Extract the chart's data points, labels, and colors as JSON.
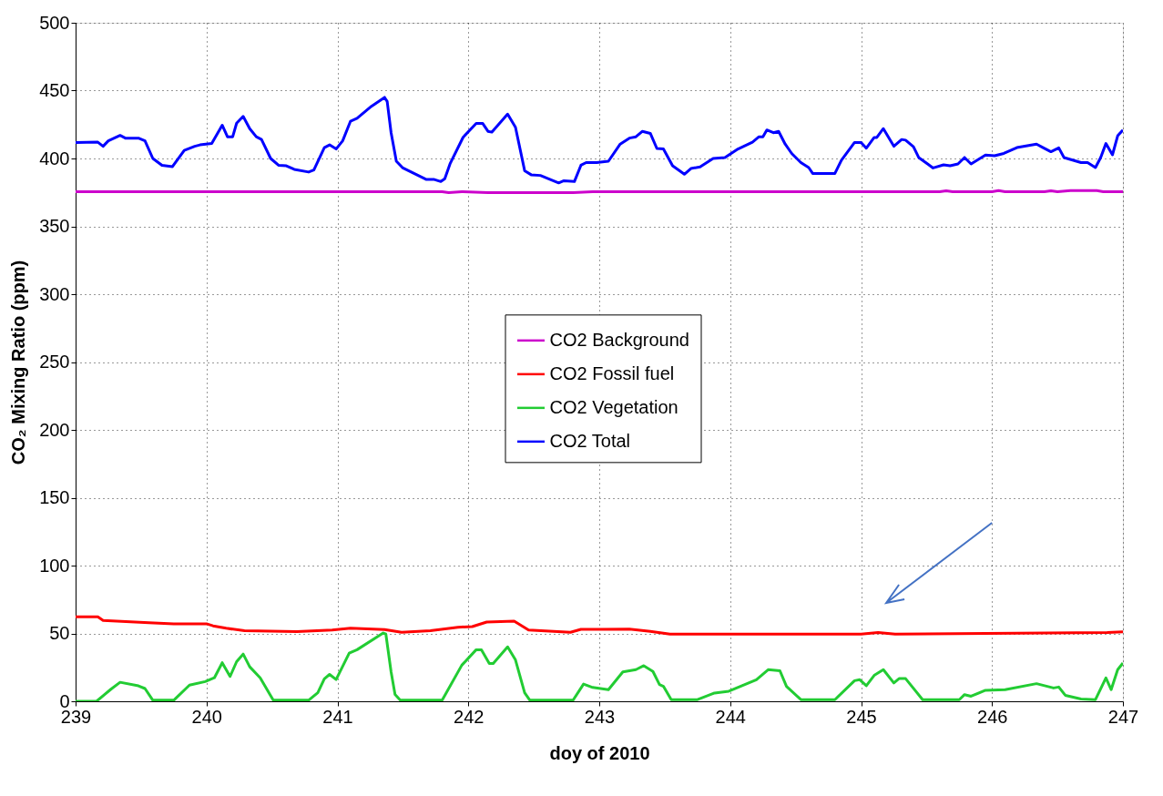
{
  "chart_data": {
    "type": "line",
    "xlabel": "doy of 2010",
    "ylabel": "CO₂ Mixing Ratio (ppm)",
    "xlim": [
      239,
      247
    ],
    "xticks": [
      239,
      240,
      241,
      242,
      243,
      244,
      245,
      246,
      247
    ],
    "ylim": [
      0,
      500
    ],
    "yticks": [
      0,
      50,
      100,
      150,
      200,
      250,
      300,
      350,
      400,
      450,
      500
    ],
    "grid": true,
    "legend": "center",
    "line_style": "solid",
    "marker": "none",
    "series": [
      {
        "name": "CO2 Background",
        "color": "#cc00cc",
        "x": [
          239,
          241.8,
          241.85,
          241.95,
          242.15,
          242.8,
          242.95,
          245.6,
          245.65,
          245.7,
          246.0,
          246.05,
          246.1,
          246.4,
          246.45,
          246.5,
          246.6,
          246.8,
          246.85,
          247
        ],
        "values": [
          375.5,
          375.5,
          374.8,
          375.5,
          374.8,
          374.8,
          375.5,
          375.5,
          376.2,
          375.5,
          375.5,
          376.3,
          375.5,
          375.5,
          376.2,
          375.5,
          376.3,
          376.3,
          375.5,
          375.5
        ]
      },
      {
        "name": "CO2 Fossil fuel",
        "color": "#ff0000",
        "x": [
          239,
          239.17,
          239.21,
          239.56,
          239.75,
          240,
          240.05,
          240.15,
          240.29,
          240.69,
          240.96,
          241.1,
          241.36,
          241.49,
          241.71,
          241.92,
          242.03,
          242.14,
          242.35,
          242.46,
          242.78,
          242.86,
          243.01,
          243.23,
          243.39,
          243.54,
          245,
          245.13,
          245.26,
          246.88,
          247
        ],
        "values": [
          62.2,
          62.2,
          59.6,
          57.9,
          57.1,
          57.1,
          55.6,
          53.8,
          52,
          51.3,
          52.5,
          53.8,
          52.8,
          50.8,
          52,
          54.6,
          55,
          58.4,
          59.1,
          52.5,
          50.8,
          53,
          53,
          53.2,
          51.5,
          49.5,
          49.5,
          50.7,
          49.5,
          50.7,
          51.2
        ]
      },
      {
        "name": "CO2 Vegetation",
        "color": "#22cc33",
        "x": [
          239,
          239.16,
          239.27,
          239.34,
          239.48,
          239.53,
          239.59,
          239.75,
          239.87,
          239.99,
          240.06,
          240.12,
          240.18,
          240.23,
          240.28,
          240.33,
          240.41,
          240.51,
          240.78,
          240.85,
          240.9,
          240.94,
          240.99,
          241.09,
          241.15,
          241.35,
          241.37,
          241.41,
          241.44,
          241.48,
          241.8,
          241.95,
          242.06,
          242.1,
          242.16,
          242.19,
          242.3,
          242.36,
          242.43,
          242.47,
          242.8,
          242.88,
          242.95,
          243.07,
          243.18,
          243.28,
          243.34,
          243.41,
          243.46,
          243.49,
          243.55,
          243.75,
          243.88,
          243.99,
          244.2,
          244.29,
          244.38,
          244.43,
          244.54,
          244.8,
          244.95,
          244.99,
          245.04,
          245.1,
          245.17,
          245.25,
          245.29,
          245.34,
          245.47,
          245.75,
          245.79,
          245.84,
          245.95,
          246.1,
          246.34,
          246.47,
          246.51,
          246.56,
          246.68,
          246.79,
          246.87,
          246.91,
          246.96,
          247
        ],
        "values": [
          0,
          0,
          8.9,
          14,
          11.4,
          9.4,
          0.8,
          0.8,
          11.9,
          14.5,
          17.3,
          28.4,
          18.3,
          29.2,
          34.8,
          25.4,
          17.3,
          0.8,
          0.8,
          6.3,
          16.5,
          19.8,
          16,
          35.5,
          38,
          50.3,
          49.5,
          21.6,
          5,
          0.8,
          0.8,
          26.6,
          38,
          38,
          27.9,
          27.9,
          40.1,
          30.5,
          6.3,
          0.8,
          0.8,
          12.7,
          10.2,
          8.6,
          21.6,
          23.3,
          26.2,
          22,
          12.3,
          11,
          1.2,
          1.2,
          6.1,
          7.4,
          15.9,
          23.3,
          22.5,
          11,
          1.2,
          1.2,
          15.2,
          15.9,
          11.5,
          19.1,
          23.3,
          13.5,
          16.7,
          16.7,
          1.2,
          1.2,
          4.9,
          3.7,
          8.1,
          8.6,
          13,
          9.8,
          10.5,
          4.4,
          1.7,
          1.2,
          17.2,
          8.6,
          23.3,
          28.2
        ]
      },
      {
        "name": "CO2 Total",
        "color": "#0000ff",
        "x": [
          239,
          239.17,
          239.21,
          239.25,
          239.34,
          239.38,
          239.48,
          239.53,
          239.59,
          239.66,
          239.74,
          239.83,
          239.91,
          239.95,
          240.04,
          240.12,
          240.16,
          240.2,
          240.23,
          240.28,
          240.33,
          240.38,
          240.42,
          240.49,
          240.55,
          240.61,
          240.67,
          240.78,
          240.82,
          240.9,
          240.94,
          240.99,
          241.04,
          241.1,
          241.15,
          241.26,
          241.36,
          241.38,
          241.41,
          241.45,
          241.5,
          241.68,
          241.74,
          241.79,
          241.82,
          241.86,
          241.96,
          242.06,
          242.11,
          242.15,
          242.18,
          242.3,
          242.36,
          242.43,
          242.48,
          242.55,
          242.69,
          242.73,
          242.81,
          242.86,
          242.9,
          242.98,
          243.07,
          243.16,
          243.23,
          243.28,
          243.33,
          243.39,
          243.44,
          243.49,
          243.56,
          243.65,
          243.7,
          243.77,
          243.87,
          243.96,
          244.06,
          244.17,
          244.22,
          244.25,
          244.28,
          244.33,
          244.37,
          244.42,
          244.47,
          244.54,
          244.6,
          244.63,
          244.8,
          244.85,
          244.95,
          245.0,
          245.04,
          245.1,
          245.12,
          245.17,
          245.25,
          245.31,
          245.34,
          245.4,
          245.44,
          245.55,
          245.63,
          245.68,
          245.74,
          245.79,
          245.84,
          245.95,
          246.02,
          246.09,
          246.19,
          246.34,
          246.39,
          246.45,
          246.51,
          246.55,
          246.68,
          246.73,
          246.79,
          246.83,
          246.87,
          246.92,
          246.96,
          247
        ],
        "values": [
          411.7,
          412,
          409,
          413,
          417,
          415,
          415,
          413,
          400,
          395,
          394,
          406,
          409,
          410,
          411,
          424.5,
          416,
          416,
          426,
          431,
          422,
          416,
          414,
          400,
          395,
          394.6,
          392,
          390,
          391.5,
          408,
          410,
          407,
          413,
          427.5,
          429.6,
          438.5,
          445,
          442,
          419,
          398,
          393,
          384.5,
          384.5,
          383,
          385,
          396,
          415.6,
          425.8,
          425.8,
          420,
          419.4,
          432.7,
          423,
          391,
          388,
          387.5,
          382,
          383.6,
          383,
          395,
          397,
          397,
          398,
          410.6,
          415,
          416,
          420,
          418.5,
          407.4,
          407,
          394.6,
          388.4,
          392.6,
          393.8,
          400,
          400.7,
          407,
          412,
          416,
          416,
          421,
          419,
          420,
          410.6,
          403.7,
          397,
          393.3,
          389,
          389,
          398.8,
          411.8,
          411.8,
          407.6,
          415.5,
          415.5,
          422,
          409,
          414,
          413.5,
          408.6,
          400.7,
          393,
          395.3,
          394.6,
          396,
          400.7,
          396,
          402.5,
          402,
          403.7,
          408,
          410.6,
          408,
          405,
          407.8,
          400.7,
          397,
          397,
          393.3,
          400.7,
          411,
          402.7,
          416.7,
          421
        ]
      }
    ]
  }
}
